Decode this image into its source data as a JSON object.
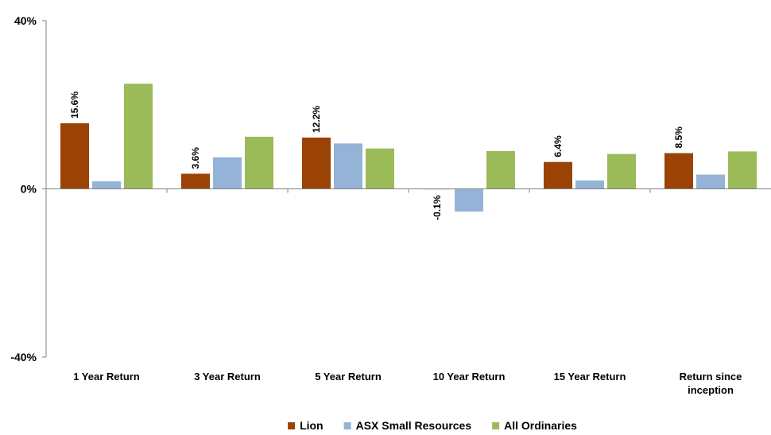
{
  "chart_data": {
    "type": "bar",
    "categories": [
      "1 Year Return",
      "3 Year Return",
      "5 Year Return",
      "10 Year Return",
      "15 Year Return",
      "Return since inception"
    ],
    "category_lines": [
      [
        "1 Year Return"
      ],
      [
        "3 Year Return"
      ],
      [
        "5 Year Return"
      ],
      [
        "10 Year Return"
      ],
      [
        "15 Year Return"
      ],
      [
        "Return since",
        "inception"
      ]
    ],
    "series": [
      {
        "name": "Lion",
        "color": "#9A4304",
        "values": [
          15.6,
          3.6,
          12.2,
          -0.1,
          6.4,
          8.5
        ],
        "labels": [
          "15.6%",
          "3.6%",
          "12.2%",
          "-0.1%",
          "6.4%",
          "8.5%"
        ]
      },
      {
        "name": "ASX Small Resources",
        "color": "#95B3D7",
        "values": [
          1.8,
          7.5,
          10.8,
          -5.4,
          2.0,
          3.4
        ]
      },
      {
        "name": "All Ordinaries",
        "color": "#9BBB59",
        "values": [
          25.0,
          12.4,
          9.6,
          9.0,
          8.3,
          8.9
        ]
      }
    ],
    "ylim": [
      -40,
      40
    ],
    "yticks": [
      {
        "value": 40,
        "label": "40%"
      },
      {
        "value": 0,
        "label": "0%"
      },
      {
        "value": -40,
        "label": "-40%"
      }
    ],
    "grid": false,
    "legend": "bottom",
    "title": "",
    "xlabel": "",
    "ylabel": ""
  }
}
